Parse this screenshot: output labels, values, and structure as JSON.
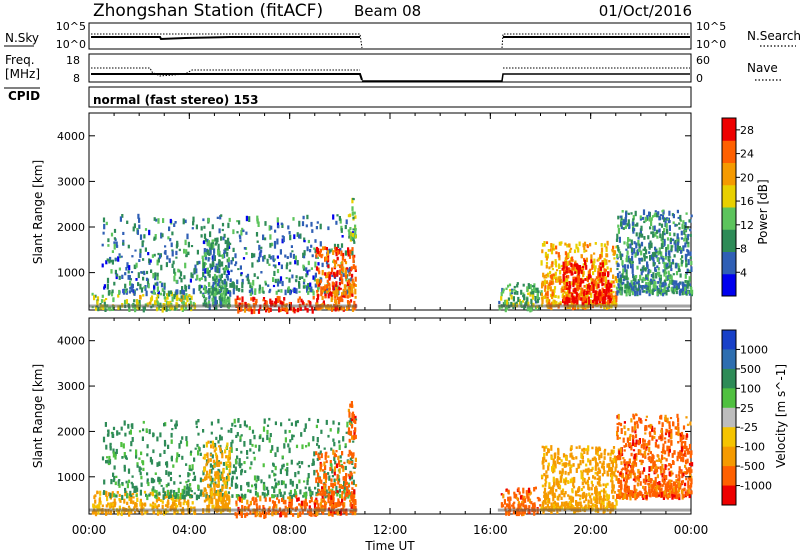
{
  "header": {
    "station": "Zhongshan Station (fitACF)",
    "beam": "Beam 08",
    "date": "01/Oct/2016"
  },
  "strip_labels": {
    "nsky": "N.Sky",
    "freq_line1": "Freq.",
    "freq_line2": "[MHz]",
    "cpid": "CPID",
    "nsearch": "N.Search",
    "nave": "Nave",
    "nsky_top": "10^5",
    "nsky_bottom": "10^0",
    "freq_top": "18",
    "freq_bottom": "8",
    "nave_top": "60",
    "nave_bottom": "0",
    "cpid_text": "normal (fast stereo) 153"
  },
  "chart_data": [
    {
      "type": "heatmap",
      "title": "",
      "xlabel": "Time UT",
      "ylabel": "Slant Range [km]",
      "x_ticks": [
        "00:00",
        "04:00",
        "08:00",
        "12:00",
        "16:00",
        "20:00",
        "00:00"
      ],
      "xlim_hours": [
        0,
        24
      ],
      "y_ticks": [
        1000,
        2000,
        3000,
        4000
      ],
      "ylim": [
        180,
        4500
      ],
      "colorbar_label": "Power [dB]",
      "colorbar_ticks": [
        "4",
        "8",
        "12",
        "16",
        "20",
        "24",
        "28"
      ],
      "colorbar_range": [
        0,
        30
      ],
      "colorbar_colors": [
        "#0000ee",
        "#2f5fb5",
        "#2e8b57",
        "#5cc45c",
        "#e8d000",
        "#f59a00",
        "#ff6000",
        "#ee0000"
      ],
      "data_intervals_hours": [
        [
          0.0,
          10.7
        ],
        [
          16.3,
          24.0
        ]
      ],
      "echo_regions": [
        {
          "t": [
            0.1,
            4.2
          ],
          "r": [
            250,
            600
          ],
          "value": 14
        },
        {
          "t": [
            0.5,
            10.6
          ],
          "r": [
            600,
            2300
          ],
          "value": 8
        },
        {
          "t": [
            4.5,
            5.6
          ],
          "r": [
            300,
            1800
          ],
          "value": 10
        },
        {
          "t": [
            5.8,
            9.0
          ],
          "r": [
            200,
            500
          ],
          "value": 26
        },
        {
          "t": [
            9.0,
            10.6
          ],
          "r": [
            250,
            1600
          ],
          "value": 24
        },
        {
          "t": [
            10.3,
            10.6
          ],
          "r": [
            1800,
            2700
          ],
          "value": 14
        },
        {
          "t": [
            16.3,
            18.0
          ],
          "r": [
            250,
            800
          ],
          "value": 12
        },
        {
          "t": [
            18.0,
            21.0
          ],
          "r": [
            300,
            1700
          ],
          "value": 20
        },
        {
          "t": [
            18.8,
            20.8
          ],
          "r": [
            400,
            1300
          ],
          "value": 29
        },
        {
          "t": [
            21.0,
            24.0
          ],
          "r": [
            600,
            2400
          ],
          "value": 9
        }
      ]
    },
    {
      "type": "heatmap",
      "title": "",
      "xlabel": "Time UT",
      "ylabel": "Slant Range [km]",
      "x_ticks": [
        "00:00",
        "04:00",
        "08:00",
        "12:00",
        "16:00",
        "20:00",
        "00:00"
      ],
      "xlim_hours": [
        0,
        24
      ],
      "y_ticks": [
        1000,
        2000,
        3000,
        4000
      ],
      "ylim": [
        180,
        4500
      ],
      "colorbar_label": "Velocity [m s^-1]",
      "colorbar_ticks": [
        "1000",
        "500",
        "100",
        "25",
        "-25",
        "-100",
        "-500",
        "-1000"
      ],
      "colorbar_colors": [
        "#1840c8",
        "#2e6eb0",
        "#2e8b57",
        "#50c040",
        "#bdbdbd",
        "#f5c400",
        "#f59a00",
        "#ff6000",
        "#ee0000"
      ],
      "data_intervals_hours": [
        [
          0.0,
          10.7
        ],
        [
          16.3,
          24.0
        ]
      ],
      "echo_regions": [
        {
          "t": [
            0.1,
            4.2
          ],
          "r": [
            250,
            700
          ],
          "value": -100
        },
        {
          "t": [
            0.5,
            10.6
          ],
          "r": [
            600,
            2300
          ],
          "value": 100
        },
        {
          "t": [
            4.5,
            5.6
          ],
          "r": [
            300,
            1800
          ],
          "value": -100
        },
        {
          "t": [
            5.8,
            9.0
          ],
          "r": [
            200,
            600
          ],
          "value": -500
        },
        {
          "t": [
            9.0,
            10.6
          ],
          "r": [
            250,
            1600
          ],
          "value": -500
        },
        {
          "t": [
            10.3,
            10.6
          ],
          "r": [
            1800,
            2700
          ],
          "value": -500
        },
        {
          "t": [
            16.3,
            18.0
          ],
          "r": [
            250,
            800
          ],
          "value": -500
        },
        {
          "t": [
            18.0,
            21.0
          ],
          "r": [
            300,
            1700
          ],
          "value": -100
        },
        {
          "t": [
            21.0,
            24.0
          ],
          "r": [
            600,
            2400
          ],
          "value": -500
        }
      ]
    }
  ]
}
